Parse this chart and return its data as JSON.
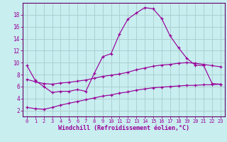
{
  "xlabel": "Windchill (Refroidissement éolien,°C)",
  "bg_color": "#c8eef0",
  "line_color": "#990099",
  "spine_color": "#660066",
  "grid_color": "#aacccc",
  "xlim": [
    -0.5,
    23.5
  ],
  "ylim": [
    1.0,
    20.0
  ],
  "xticks": [
    0,
    1,
    2,
    3,
    4,
    5,
    6,
    7,
    8,
    9,
    10,
    11,
    12,
    13,
    14,
    15,
    16,
    17,
    18,
    19,
    20,
    21,
    22,
    23
  ],
  "yticks": [
    2,
    4,
    6,
    8,
    10,
    12,
    14,
    16,
    18
  ],
  "line1_x": [
    0,
    1,
    2,
    3,
    4,
    5,
    6,
    7,
    8,
    9,
    10,
    11,
    12,
    13,
    14,
    15,
    16,
    17,
    18,
    19,
    20,
    21,
    22,
    23
  ],
  "line1_y": [
    9.5,
    7.0,
    6.0,
    5.0,
    5.2,
    5.2,
    5.5,
    5.2,
    8.2,
    11.0,
    11.5,
    14.8,
    17.3,
    18.3,
    19.2,
    19.0,
    17.4,
    14.5,
    12.5,
    10.7,
    9.6,
    9.5,
    6.5,
    6.4
  ],
  "line2_x": [
    0,
    1,
    2,
    3,
    4,
    5,
    6,
    7,
    8,
    9,
    10,
    11,
    12,
    13,
    14,
    15,
    16,
    17,
    18,
    19,
    20,
    21,
    22,
    23
  ],
  "line2_y": [
    7.2,
    6.8,
    6.5,
    6.4,
    6.6,
    6.7,
    6.9,
    7.1,
    7.4,
    7.7,
    7.9,
    8.1,
    8.4,
    8.8,
    9.1,
    9.4,
    9.6,
    9.7,
    9.9,
    10.0,
    9.9,
    9.7,
    9.5,
    9.3
  ],
  "line3_x": [
    0,
    1,
    2,
    3,
    4,
    5,
    6,
    7,
    8,
    9,
    10,
    11,
    12,
    13,
    14,
    15,
    16,
    17,
    18,
    19,
    20,
    21,
    22,
    23
  ],
  "line3_y": [
    2.5,
    2.3,
    2.2,
    2.5,
    2.9,
    3.2,
    3.5,
    3.8,
    4.1,
    4.4,
    4.6,
    4.9,
    5.1,
    5.4,
    5.6,
    5.8,
    5.9,
    6.0,
    6.1,
    6.2,
    6.2,
    6.3,
    6.3,
    6.4
  ],
  "tick_fontsize": 5.5,
  "xlabel_fontsize": 6.0
}
